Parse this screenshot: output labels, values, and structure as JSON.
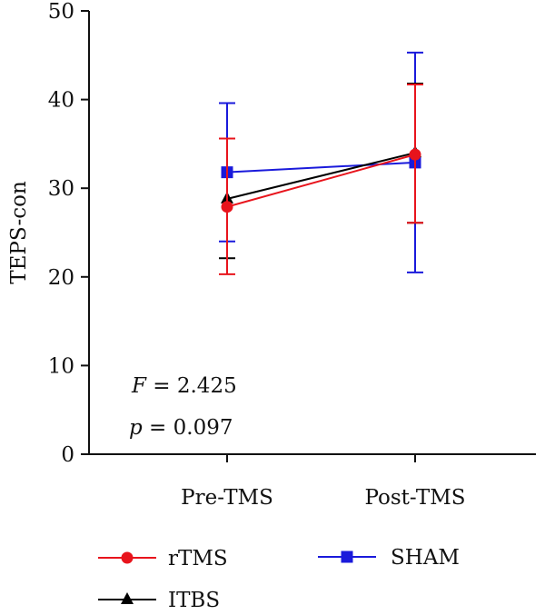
{
  "chart_data": {
    "type": "line",
    "title": "",
    "xlabel": "",
    "ylabel": "TEPS-con",
    "categories": [
      "Pre-TMS",
      "Post-TMS"
    ],
    "ylim": [
      0,
      50
    ],
    "yticks": [
      0,
      10,
      20,
      30,
      40,
      50
    ],
    "grid": false,
    "legend_position": "bottom",
    "series": [
      {
        "name": "rTMS",
        "color": "#e8141c",
        "marker": "circle",
        "values": [
          27.9,
          33.8
        ],
        "error_lower": [
          20.3,
          26.1
        ],
        "error_upper": [
          35.6,
          41.7
        ]
      },
      {
        "name": "ITBS",
        "color": "#000000",
        "marker": "triangle",
        "values": [
          28.8,
          34.0
        ],
        "error_lower": [
          22.1,
          26.1
        ],
        "error_upper": [
          35.6,
          41.8
        ]
      },
      {
        "name": "SHAM",
        "color": "#1a1adb",
        "marker": "square",
        "values": [
          31.8,
          32.9
        ],
        "error_lower": [
          24.0,
          20.5
        ],
        "error_upper": [
          39.6,
          45.3
        ]
      }
    ],
    "annotations": {
      "f_label": "F",
      "f_value": " = 2.425",
      "p_label": "p",
      "p_value": " = 0.097"
    }
  }
}
